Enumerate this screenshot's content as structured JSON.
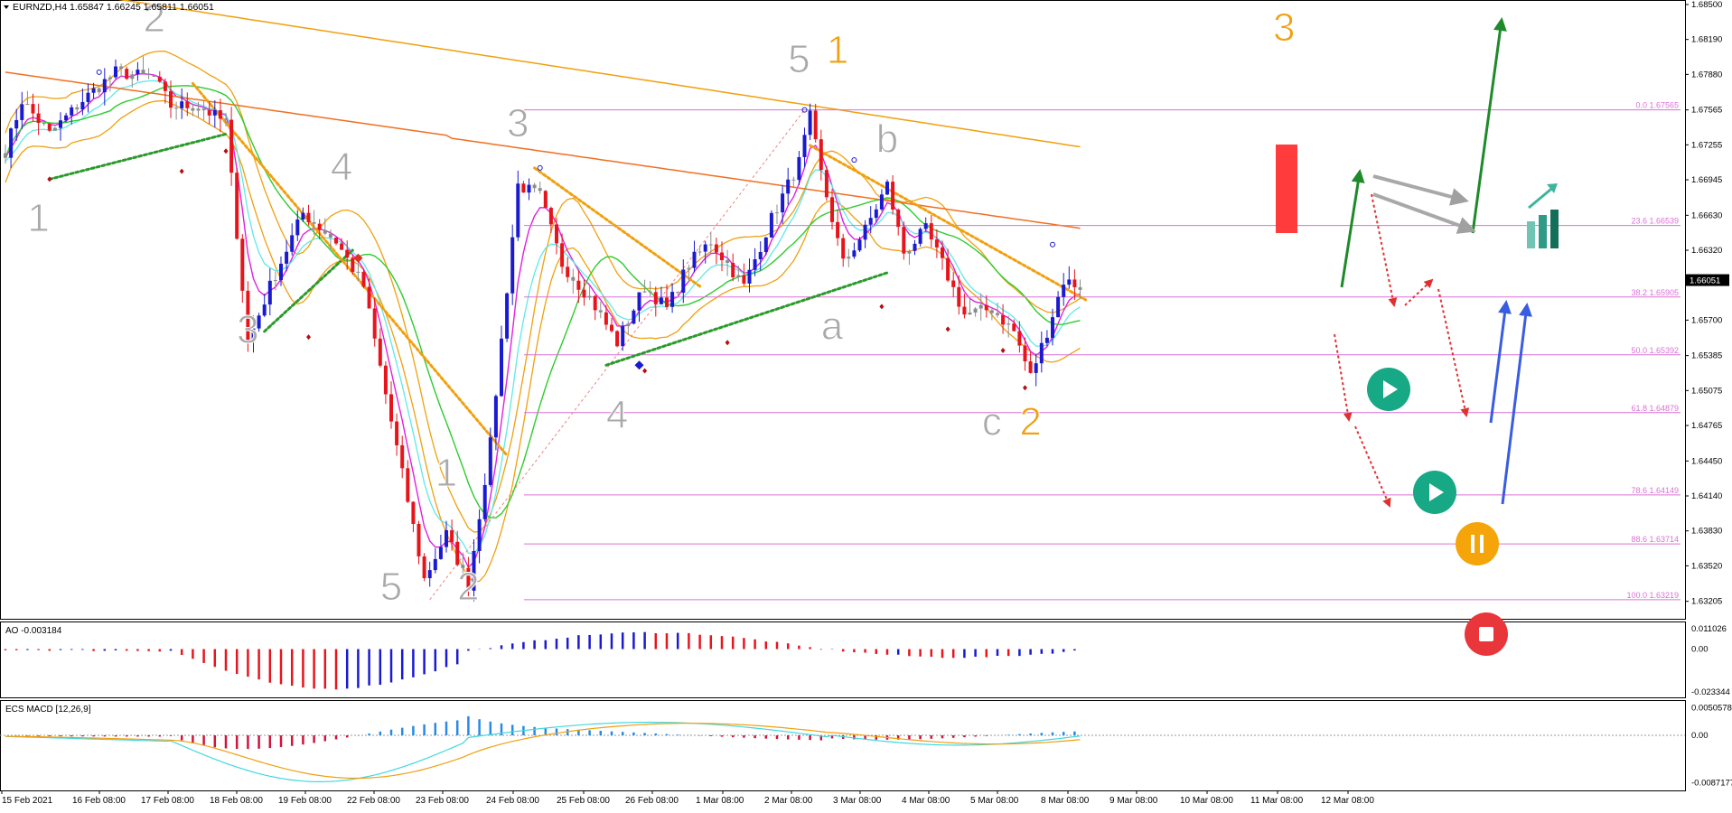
{
  "header": {
    "symbol_line": "EURNZD,H4  1.65847 1.66245 1.65811 1.66051"
  },
  "chart_data": {
    "type": "candlestick",
    "symbol": "EURNZD",
    "timeframe": "H4",
    "ohlc_header": {
      "open": 1.65847,
      "high": 1.66245,
      "low": 1.65811,
      "close": 1.66051
    },
    "price_axis": {
      "ylim": [
        1.6305,
        1.685
      ],
      "ticks": [
        "1.68500",
        "1.68190",
        "1.67880",
        "1.67565",
        "1.67255",
        "1.66945",
        "1.66630",
        "1.66320",
        "1.66051",
        "1.65700",
        "1.65385",
        "1.65075",
        "1.64765",
        "1.64450",
        "1.64140",
        "1.63830",
        "1.63520",
        "1.63205"
      ],
      "current_price": "1.66051"
    },
    "time_axis": {
      "ticks": [
        "15 Feb 2021",
        "16 Feb 08:00",
        "17 Feb 08:00",
        "18 Feb 08:00",
        "19 Feb 08:00",
        "22 Feb 08:00",
        "23 Feb 08:00",
        "24 Feb 08:00",
        "25 Feb 08:00",
        "26 Feb 08:00",
        "1 Mar 08:00",
        "2 Mar 08:00",
        "3 Mar 08:00",
        "4 Mar 08:00",
        "5 Mar 08:00",
        "8 Mar 08:00",
        "9 Mar 08:00",
        "10 Mar 08:00",
        "11 Mar 08:00",
        "12 Mar 08:00"
      ]
    },
    "fibonacci": [
      {
        "label": "0.0 1.67565",
        "price": 1.67565
      },
      {
        "label": "23.6 1.66539",
        "price": 1.66539
      },
      {
        "label": "38.2 1.65905",
        "price": 1.65905
      },
      {
        "label": "50.0 1.65392",
        "price": 1.65392
      },
      {
        "label": "61.8 1.64879",
        "price": 1.64879
      },
      {
        "label": "78.6 1.64149",
        "price": 1.64149
      },
      {
        "label": "88.6 1.63714",
        "price": 1.63714
      },
      {
        "label": "100.0 1.63219",
        "price": 1.63219
      }
    ],
    "wave_labels": [
      {
        "text": "1",
        "idx": 6,
        "price": 1.6649,
        "color": "#a9a9a9"
      },
      {
        "text": "2",
        "idx": 27,
        "price": 1.6826,
        "color": "#a9a9a9"
      },
      {
        "text": "3",
        "idx": 44,
        "price": 1.655,
        "color": "#a9a9a9"
      },
      {
        "text": "4",
        "idx": 61,
        "price": 1.6694,
        "color": "#a9a9a9"
      },
      {
        "text": "5",
        "idx": 70,
        "price": 1.6322,
        "color": "#a9a9a9"
      },
      {
        "text": "1",
        "idx": 80,
        "price": 1.6423,
        "color": "#a9a9a9"
      },
      {
        "text": "2",
        "idx": 84,
        "price": 1.6322,
        "color": "#a9a9a9"
      },
      {
        "text": "3",
        "idx": 93,
        "price": 1.6733,
        "color": "#a9a9a9"
      },
      {
        "text": "4",
        "idx": 111,
        "price": 1.6474,
        "color": "#a9a9a9"
      },
      {
        "text": "5",
        "idx": 144,
        "price": 1.679,
        "color": "#a9a9a9"
      },
      {
        "text": "1",
        "idx": 151,
        "price": 1.6798,
        "color": "#f0a010"
      },
      {
        "text": "b",
        "idx": 160,
        "price": 1.6719,
        "color": "#a9a9a9"
      },
      {
        "text": "a",
        "idx": 150,
        "price": 1.6553,
        "color": "#a9a9a9"
      },
      {
        "text": "c",
        "idx": 179,
        "price": 1.6468,
        "color": "#a9a9a9"
      },
      {
        "text": "2",
        "idx": 186,
        "price": 1.6468,
        "color": "#f0a010"
      },
      {
        "text": "3",
        "idx": 232,
        "price": 1.6818,
        "color": "#f0a010"
      }
    ],
    "indicators": {
      "ao": {
        "label": "AO -0.003184",
        "ticks": [
          "0.011026",
          "0.00",
          "-0.023344"
        ],
        "ylim": [
          -0.0252,
          0.013
        ]
      },
      "macd": {
        "label": "ECS MACD [12,26,9]",
        "ticks": [
          "0.0050578",
          "0.00",
          "-0.0087177"
        ],
        "ylim": [
          -0.0096,
          0.0058
        ]
      }
    },
    "colors": {
      "bull": "#1a1ad0",
      "bear": "#e8141c",
      "neutral": "#8c8c8c",
      "fib": "#da70d6",
      "ema_orange": "#f0a010",
      "ema_long": "#f07020",
      "green": "#2ecc2e",
      "magenta": "#e020e0",
      "cyan": "#60e8e8"
    }
  }
}
